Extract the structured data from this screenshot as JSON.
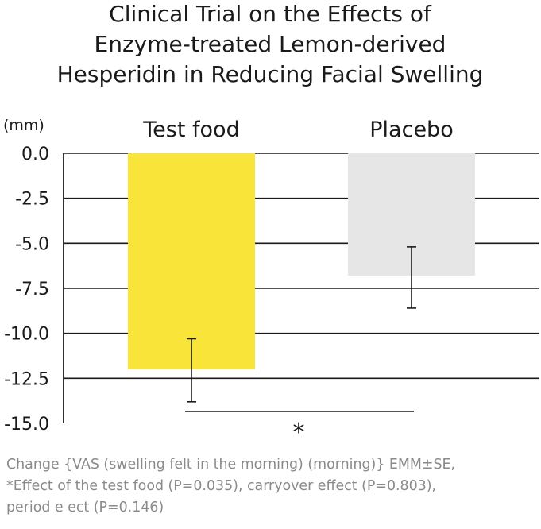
{
  "chart_data": {
    "type": "bar",
    "title_lines": [
      "Clinical Trial on the Effects of",
      "Enzyme-treated Lemon-derived",
      "Hesperidin in Reducing Facial Swelling"
    ],
    "ylabel": "(mm)",
    "ylim": [
      -15.0,
      0.0
    ],
    "yticks": [
      "0.0",
      "-2.5",
      "-5.0",
      "-7.5",
      "-10.0",
      "-12.5",
      "-15.0"
    ],
    "ytick_values": [
      0.0,
      -2.5,
      -5.0,
      -7.5,
      -10.0,
      -12.5,
      -15.0
    ],
    "grid": true,
    "categories": [
      "Test food",
      "Placebo"
    ],
    "values": [
      -12.0,
      -6.8
    ],
    "error": [
      {
        "low": -13.8,
        "high": -10.3
      },
      {
        "low": -8.6,
        "high": -5.2
      }
    ],
    "colors": [
      "#f9e53a",
      "#e6e6e6"
    ],
    "significance": {
      "label": "*",
      "between": [
        "Test food",
        "Placebo"
      ]
    }
  },
  "caption": "Change {VAS (swelling felt in the morning) (morning)} EMM±SE,\n*Effect of the test food (P=0.035), carryover effect (P=0.803),\nperiod e ect (P=0.146)"
}
